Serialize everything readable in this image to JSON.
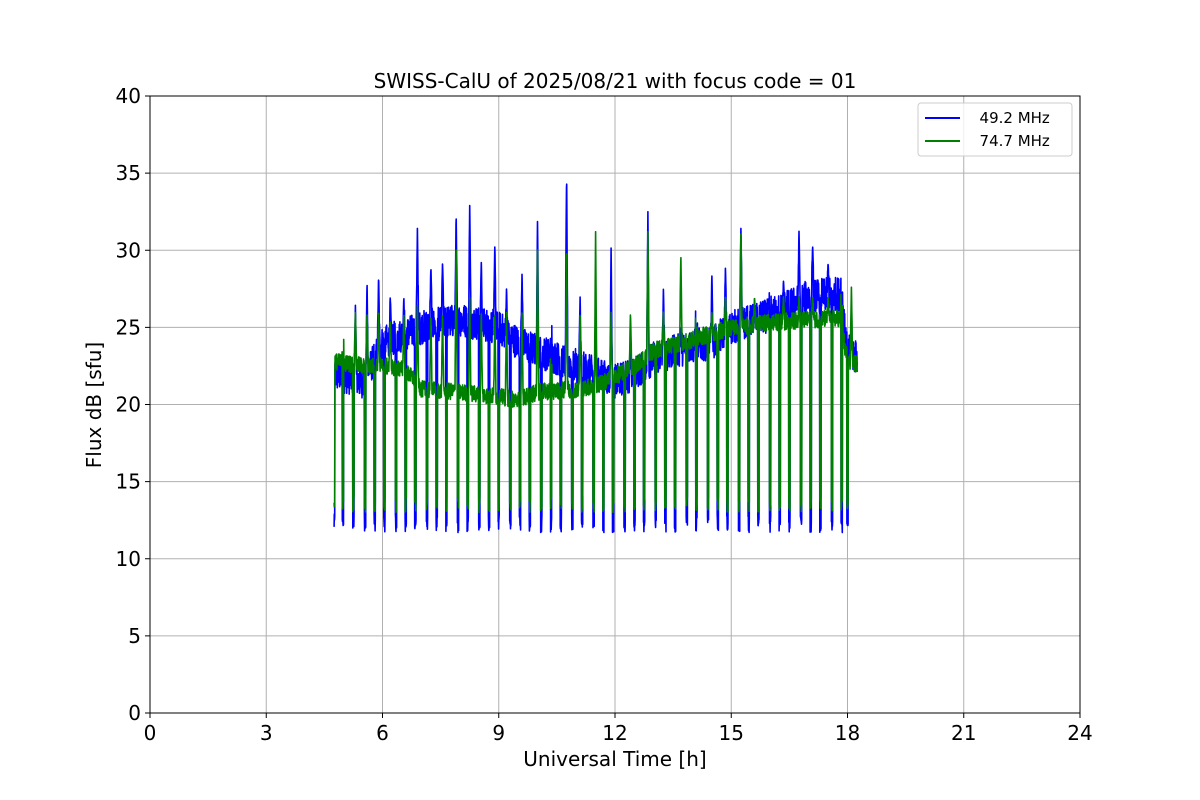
{
  "chart_data": {
    "type": "line",
    "title": "SWISS-CalU of 2025/08/21 with focus code = 01",
    "xlabel": "Universal Time [h]",
    "ylabel": "Flux dB [sfu]",
    "xlim": [
      0,
      24
    ],
    "ylim": [
      0,
      40
    ],
    "xticks": [
      0,
      3,
      6,
      9,
      12,
      15,
      18,
      21,
      24
    ],
    "yticks": [
      0,
      5,
      10,
      15,
      20,
      25,
      30,
      35,
      40
    ],
    "grid": true,
    "legend_position": "top-right",
    "series": [
      {
        "name": "  49.2 MHz",
        "color": "#0000ff",
        "baseline": [
          [
            4.75,
            22.0
          ],
          [
            5.5,
            21.5
          ],
          [
            6.0,
            24.0
          ],
          [
            6.5,
            24.5
          ],
          [
            7.0,
            25.0
          ],
          [
            8.0,
            25.5
          ],
          [
            9.0,
            25.0
          ],
          [
            9.5,
            24.0
          ],
          [
            10.0,
            23.5
          ],
          [
            11.0,
            22.5
          ],
          [
            11.5,
            22.0
          ],
          [
            12.0,
            21.5
          ],
          [
            12.5,
            22.0
          ],
          [
            13.0,
            23.0
          ],
          [
            14.0,
            23.8
          ],
          [
            14.5,
            24.0
          ],
          [
            15.0,
            25.0
          ],
          [
            16.0,
            25.8
          ],
          [
            17.0,
            27.0
          ],
          [
            17.8,
            27.2
          ],
          [
            18.0,
            23.5
          ],
          [
            18.25,
            23.0
          ]
        ],
        "calibration_drop_min": 11.7,
        "peaks": [
          [
            4.98,
            27.0
          ],
          [
            5.3,
            26.5
          ],
          [
            5.6,
            28.0
          ],
          [
            5.9,
            28.4
          ],
          [
            6.2,
            27.0
          ],
          [
            6.55,
            27.0
          ],
          [
            6.9,
            31.5
          ],
          [
            7.25,
            29.0
          ],
          [
            7.55,
            29.3
          ],
          [
            7.9,
            32.4
          ],
          [
            8.25,
            33.0
          ],
          [
            8.55,
            29.3
          ],
          [
            8.9,
            30.5
          ],
          [
            9.2,
            27.5
          ],
          [
            9.6,
            28.5
          ],
          [
            10.0,
            32.0
          ],
          [
            10.35,
            27.0
          ],
          [
            10.75,
            35.2
          ],
          [
            11.1,
            27.0
          ],
          [
            11.5,
            25.0
          ],
          [
            11.9,
            30.2
          ],
          [
            12.4,
            23.5
          ],
          [
            12.85,
            32.5
          ],
          [
            13.25,
            27.5
          ],
          [
            13.7,
            25.0
          ],
          [
            14.1,
            29.2
          ],
          [
            14.5,
            28.5
          ],
          [
            14.85,
            29.0
          ],
          [
            15.25,
            31.7
          ],
          [
            15.6,
            26.5
          ],
          [
            16.0,
            28.7
          ],
          [
            16.35,
            28.0
          ],
          [
            16.75,
            31.3
          ],
          [
            17.1,
            30.4
          ],
          [
            17.5,
            29.2
          ],
          [
            17.85,
            30.5
          ],
          [
            18.1,
            26.0
          ]
        ]
      },
      {
        "name": "  74.7 MHz",
        "color": "#008000",
        "baseline": [
          [
            4.75,
            22.8
          ],
          [
            5.5,
            22.5
          ],
          [
            6.0,
            22.5
          ],
          [
            6.5,
            22.3
          ],
          [
            6.9,
            21.5
          ],
          [
            7.0,
            21.0
          ],
          [
            8.0,
            20.8
          ],
          [
            9.0,
            20.5
          ],
          [
            9.5,
            20.3
          ],
          [
            10.0,
            20.8
          ],
          [
            11.0,
            21.0
          ],
          [
            11.5,
            21.2
          ],
          [
            12.0,
            21.8
          ],
          [
            12.5,
            22.5
          ],
          [
            13.0,
            23.5
          ],
          [
            14.0,
            24.2
          ],
          [
            14.5,
            24.6
          ],
          [
            15.0,
            25.0
          ],
          [
            16.0,
            25.3
          ],
          [
            17.0,
            25.5
          ],
          [
            17.8,
            25.6
          ],
          [
            18.0,
            22.8
          ],
          [
            18.25,
            22.6
          ]
        ],
        "calibration_drop_min": 13.0,
        "peaks": [
          [
            4.98,
            27.0
          ],
          [
            5.3,
            26.0
          ],
          [
            5.6,
            26.0
          ],
          [
            5.9,
            26.2
          ],
          [
            6.2,
            25.5
          ],
          [
            6.55,
            26.0
          ],
          [
            6.9,
            26.5
          ],
          [
            7.25,
            26.0
          ],
          [
            7.55,
            26.0
          ],
          [
            7.9,
            30.6
          ],
          [
            8.25,
            27.0
          ],
          [
            8.55,
            26.0
          ],
          [
            8.9,
            26.0
          ],
          [
            9.2,
            26.0
          ],
          [
            9.6,
            26.0
          ],
          [
            10.0,
            30.2
          ],
          [
            10.35,
            25.8
          ],
          [
            10.75,
            30.5
          ],
          [
            11.1,
            25.8
          ],
          [
            11.5,
            31.2
          ],
          [
            11.9,
            26.0
          ],
          [
            12.4,
            26.0
          ],
          [
            12.85,
            31.2
          ],
          [
            13.25,
            26.0
          ],
          [
            13.7,
            29.8
          ],
          [
            14.1,
            28.5
          ],
          [
            14.5,
            26.0
          ],
          [
            14.85,
            27.0
          ],
          [
            15.25,
            31.3
          ],
          [
            15.6,
            27.0
          ],
          [
            16.0,
            27.0
          ],
          [
            16.35,
            27.0
          ],
          [
            16.75,
            27.0
          ],
          [
            17.1,
            27.0
          ],
          [
            17.5,
            27.0
          ],
          [
            17.85,
            31.3
          ],
          [
            18.1,
            27.7
          ]
        ]
      }
    ],
    "calibration_times": [
      4.75,
      4.98,
      5.25,
      5.55,
      5.8,
      6.05,
      6.35,
      6.6,
      6.85,
      7.15,
      7.4,
      7.65,
      7.95,
      8.2,
      8.5,
      8.75,
      9.0,
      9.3,
      9.55,
      9.8,
      10.1,
      10.35,
      10.6,
      10.9,
      11.15,
      11.45,
      11.7,
      11.95,
      12.25,
      12.5,
      12.75,
      13.05,
      13.3,
      13.55,
      13.85,
      14.1,
      14.4,
      14.65,
      14.9,
      15.2,
      15.45,
      15.7,
      16.0,
      16.25,
      16.5,
      16.8,
      17.05,
      17.3,
      17.6,
      17.85,
      18.0
    ]
  }
}
